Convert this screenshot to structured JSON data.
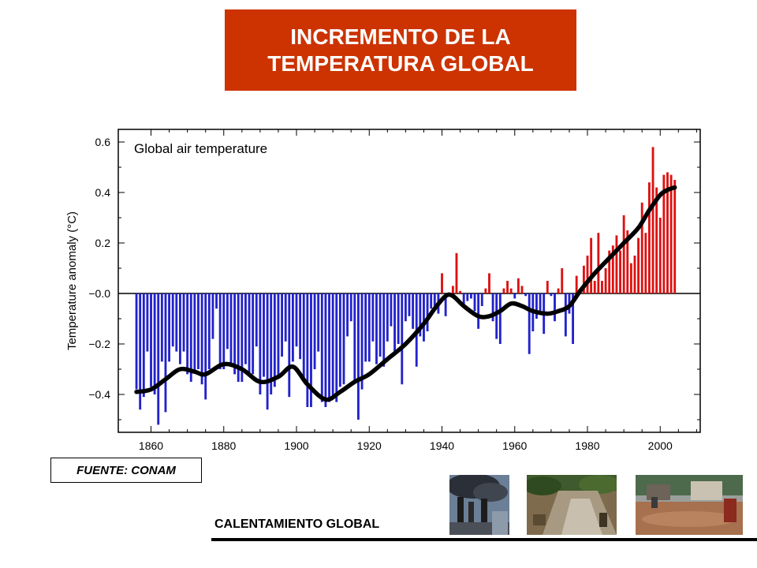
{
  "header": {
    "title_line1": "INCREMENTO DE LA",
    "title_line2": "TEMPERATURA GLOBAL"
  },
  "source": {
    "label": "FUENTE: CONAM"
  },
  "footer": {
    "label": "CALENTAMIENTO GLOBAL"
  },
  "photos": [
    {
      "icon": "factory-smokestacks-photo"
    },
    {
      "icon": "deforested-hillside-photo"
    },
    {
      "icon": "flooded-street-photo"
    }
  ],
  "colors": {
    "title_bg": "#cc3300",
    "negative": "#2222cc",
    "positive": "#dd1111",
    "smooth": "#000000"
  },
  "chart_data": {
    "type": "bar",
    "title": "Global air temperature",
    "xlabel": "",
    "ylabel": "Temperature anomaly (°C)",
    "xlim": [
      1851,
      2011
    ],
    "ylim": [
      -0.55,
      0.65
    ],
    "xticks": [
      1860,
      1880,
      1900,
      1920,
      1940,
      1960,
      1980,
      2000
    ],
    "yticks": [
      -0.4,
      -0.2,
      0.0,
      0.2,
      0.4,
      0.6
    ],
    "ytick_labels": [
      "−0.4",
      "−0.2",
      "−0.0",
      "0.2",
      "0.4",
      "0.6"
    ],
    "grid": false,
    "legend": "none",
    "years": [
      1856,
      1857,
      1858,
      1859,
      1860,
      1861,
      1862,
      1863,
      1864,
      1865,
      1866,
      1867,
      1868,
      1869,
      1870,
      1871,
      1872,
      1873,
      1874,
      1875,
      1876,
      1877,
      1878,
      1879,
      1880,
      1881,
      1882,
      1883,
      1884,
      1885,
      1886,
      1887,
      1888,
      1889,
      1890,
      1891,
      1892,
      1893,
      1894,
      1895,
      1896,
      1897,
      1898,
      1899,
      1900,
      1901,
      1902,
      1903,
      1904,
      1905,
      1906,
      1907,
      1908,
      1909,
      1910,
      1911,
      1912,
      1913,
      1914,
      1915,
      1916,
      1917,
      1918,
      1919,
      1920,
      1921,
      1922,
      1923,
      1924,
      1925,
      1926,
      1927,
      1928,
      1929,
      1930,
      1931,
      1932,
      1933,
      1934,
      1935,
      1936,
      1937,
      1938,
      1939,
      1940,
      1941,
      1942,
      1943,
      1944,
      1945,
      1946,
      1947,
      1948,
      1949,
      1950,
      1951,
      1952,
      1953,
      1954,
      1955,
      1956,
      1957,
      1958,
      1959,
      1960,
      1961,
      1962,
      1963,
      1964,
      1965,
      1966,
      1967,
      1968,
      1969,
      1970,
      1971,
      1972,
      1973,
      1974,
      1975,
      1976,
      1977,
      1978,
      1979,
      1980,
      1981,
      1982,
      1983,
      1984,
      1985,
      1986,
      1987,
      1988,
      1989,
      1990,
      1991,
      1992,
      1993,
      1994,
      1995,
      1996,
      1997,
      1998,
      1999,
      2000,
      2001,
      2002,
      2003,
      2004
    ],
    "anomalies": [
      -0.38,
      -0.46,
      -0.41,
      -0.23,
      -0.37,
      -0.4,
      -0.52,
      -0.27,
      -0.47,
      -0.27,
      -0.21,
      -0.23,
      -0.28,
      -0.23,
      -0.32,
      -0.35,
      -0.31,
      -0.3,
      -0.36,
      -0.42,
      -0.3,
      -0.18,
      -0.06,
      -0.3,
      -0.3,
      -0.22,
      -0.29,
      -0.32,
      -0.35,
      -0.35,
      -0.28,
      -0.33,
      -0.32,
      -0.21,
      -0.4,
      -0.33,
      -0.46,
      -0.4,
      -0.37,
      -0.33,
      -0.25,
      -0.19,
      -0.41,
      -0.27,
      -0.21,
      -0.26,
      -0.34,
      -0.45,
      -0.45,
      -0.3,
      -0.23,
      -0.43,
      -0.45,
      -0.43,
      -0.41,
      -0.43,
      -0.37,
      -0.36,
      -0.17,
      -0.11,
      -0.35,
      -0.5,
      -0.38,
      -0.27,
      -0.27,
      -0.19,
      -0.28,
      -0.25,
      -0.29,
      -0.19,
      -0.13,
      -0.23,
      -0.2,
      -0.36,
      -0.11,
      -0.09,
      -0.14,
      -0.29,
      -0.17,
      -0.19,
      -0.15,
      -0.06,
      -0.05,
      -0.08,
      0.08,
      -0.09,
      -0.01,
      0.03,
      0.16,
      0.01,
      -0.05,
      -0.03,
      -0.02,
      -0.07,
      -0.14,
      -0.05,
      0.02,
      0.08,
      -0.11,
      -0.18,
      -0.2,
      0.02,
      0.05,
      0.02,
      -0.02,
      0.06,
      0.03,
      -0.01,
      -0.24,
      -0.15,
      -0.1,
      -0.07,
      -0.16,
      0.05,
      -0.01,
      -0.11,
      0.02,
      0.1,
      -0.17,
      -0.08,
      -0.2,
      0.07,
      0.02,
      0.11,
      0.15,
      0.22,
      0.05,
      0.24,
      0.05,
      0.1,
      0.17,
      0.19,
      0.23,
      0.17,
      0.31,
      0.25,
      0.12,
      0.15,
      0.22,
      0.36,
      0.24,
      0.44,
      0.58,
      0.42,
      0.3,
      0.47,
      0.48,
      0.47,
      0.45
    ],
    "smoothed": [
      [
        1856,
        -0.39
      ],
      [
        1860,
        -0.38
      ],
      [
        1864,
        -0.34
      ],
      [
        1868,
        -0.3
      ],
      [
        1872,
        -0.31
      ],
      [
        1875,
        -0.32
      ],
      [
        1880,
        -0.28
      ],
      [
        1885,
        -0.3
      ],
      [
        1890,
        -0.35
      ],
      [
        1895,
        -0.33
      ],
      [
        1899,
        -0.29
      ],
      [
        1903,
        -0.36
      ],
      [
        1908,
        -0.42
      ],
      [
        1912,
        -0.39
      ],
      [
        1916,
        -0.35
      ],
      [
        1920,
        -0.32
      ],
      [
        1925,
        -0.26
      ],
      [
        1930,
        -0.2
      ],
      [
        1935,
        -0.12
      ],
      [
        1938,
        -0.06
      ],
      [
        1941,
        -0.01
      ],
      [
        1943,
        -0.01
      ],
      [
        1946,
        -0.05
      ],
      [
        1950,
        -0.09
      ],
      [
        1953,
        -0.09
      ],
      [
        1956,
        -0.07
      ],
      [
        1959,
        -0.04
      ],
      [
        1962,
        -0.05
      ],
      [
        1965,
        -0.07
      ],
      [
        1969,
        -0.08
      ],
      [
        1972,
        -0.07
      ],
      [
        1975,
        -0.05
      ],
      [
        1978,
        0.01
      ],
      [
        1982,
        0.08
      ],
      [
        1986,
        0.14
      ],
      [
        1990,
        0.2
      ],
      [
        1994,
        0.26
      ],
      [
        1997,
        0.33
      ],
      [
        2000,
        0.39
      ],
      [
        2002,
        0.41
      ],
      [
        2004,
        0.42
      ]
    ]
  }
}
